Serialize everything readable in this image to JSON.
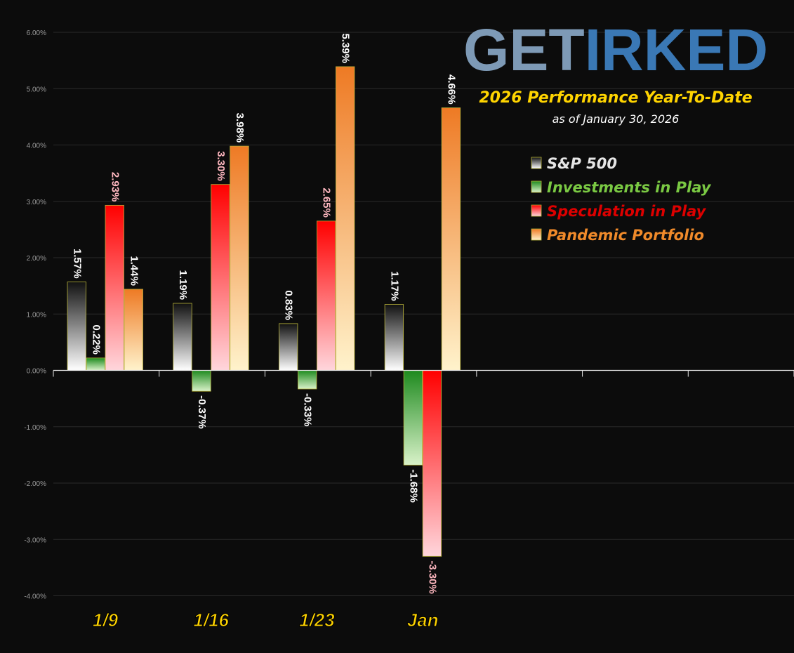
{
  "logo": {
    "part1": "GET",
    "part2": "IRKED"
  },
  "chart_data": {
    "type": "bar",
    "title": "2026 Performance Year-To-Date",
    "subtitle": "as of January 30, 2026",
    "categories": [
      "1/9",
      "1/16",
      "1/23",
      "Jan"
    ],
    "series": [
      {
        "name": "S&P 500",
        "values": [
          1.57,
          1.19,
          0.83,
          1.17
        ],
        "labels": [
          "1.57%",
          "1.19%",
          "0.83%",
          "1.17%"
        ],
        "color_top": "#111111",
        "color_bottom": "#ffffff",
        "label_color": "#ffffff"
      },
      {
        "name": "Investments in Play",
        "values": [
          0.22,
          -0.37,
          -0.33,
          -1.68
        ],
        "labels": [
          "0.22%",
          "-0.37%",
          "-0.33%",
          "-1.68%"
        ],
        "color_top": "#1e8a1e",
        "color_bottom": "#d9f2c9",
        "label_color": "#ffffff"
      },
      {
        "name": "Speculation in Play",
        "values": [
          2.93,
          3.3,
          2.65,
          -3.3
        ],
        "labels": [
          "2.93%",
          "3.30%",
          "2.65%",
          "-3.30%"
        ],
        "color_top": "#ff0000",
        "color_bottom": "#ffd6dc",
        "label_color": "#ffb8c0"
      },
      {
        "name": "Pandemic Portfolio",
        "values": [
          1.44,
          3.98,
          5.39,
          4.66
        ],
        "labels": [
          "1.44%",
          "3.98%",
          "5.39%",
          "4.66%"
        ],
        "color_top": "#ee7a24",
        "color_bottom": "#fff3cc",
        "label_color": "#ffffff"
      }
    ],
    "legend_colors": [
      "#e6e6e6",
      "#7ac943",
      "#dd0000",
      "#f08a2a"
    ],
    "ylim": [
      -4,
      6
    ],
    "yticks": [
      6,
      5,
      4,
      3,
      2,
      1,
      0,
      -1,
      -2,
      -3,
      -4
    ],
    "ytick_labels": [
      "6.00%",
      "5.00%",
      "4.00%",
      "3.00%",
      "2.00%",
      "1.00%",
      "0.00%",
      "-1.00%",
      "-2.00%",
      "-3.00%",
      "-4.00%"
    ],
    "slots": 7,
    "grid": true,
    "legend_position": "top-right"
  }
}
